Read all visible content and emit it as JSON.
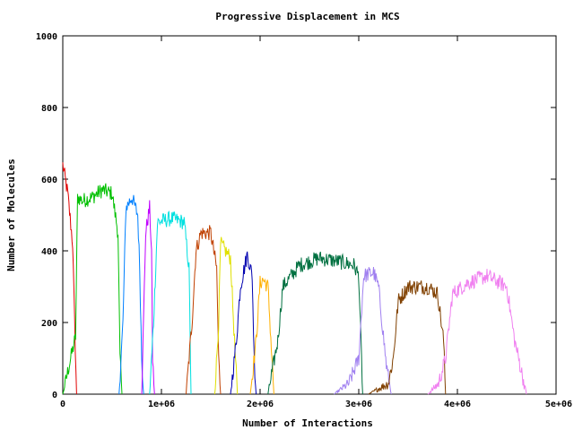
{
  "chart_data": {
    "type": "line",
    "title": "Progressive Displacement in MCS",
    "xlabel": "Number of Interactions",
    "ylabel": "Number of Molecules",
    "xlim": [
      0,
      5000000
    ],
    "ylim": [
      0,
      1000
    ],
    "x_ticks": [
      0,
      1000000,
      2000000,
      3000000,
      4000000,
      5000000
    ],
    "x_tick_labels": [
      "0",
      "1e+06",
      "2e+06",
      "3e+06",
      "4e+06",
      "5e+06"
    ],
    "y_ticks": [
      0,
      200,
      400,
      600,
      800,
      1000
    ],
    "y_tick_labels": [
      "0",
      "200",
      "400",
      "600",
      "800",
      "1000"
    ],
    "grid": false,
    "legend": "none",
    "series": [
      {
        "color": "#e00000",
        "x": [
          0,
          50000,
          100000,
          120000,
          140000
        ],
        "y": [
          640,
          560,
          420,
          200,
          0
        ]
      },
      {
        "color": "#00c000",
        "x": [
          0,
          80000,
          130000,
          150000,
          200000,
          300000,
          400000,
          500000,
          560000,
          580000,
          600000
        ],
        "y": [
          0,
          100,
          160,
          550,
          540,
          550,
          570,
          560,
          450,
          100,
          0
        ]
      },
      {
        "color": "#0080ff",
        "x": [
          570000,
          610000,
          640000,
          700000,
          760000,
          780000,
          800000,
          820000
        ],
        "y": [
          0,
          200,
          520,
          550,
          500,
          350,
          100,
          0
        ]
      },
      {
        "color": "#c000ff",
        "x": [
          800000,
          820000,
          840000,
          880000,
          900000,
          910000,
          930000
        ],
        "y": [
          0,
          220,
          450,
          520,
          400,
          100,
          0
        ]
      },
      {
        "color": "#00e0e0",
        "x": [
          880000,
          920000,
          960000,
          1100000,
          1230000,
          1280000,
          1300000
        ],
        "y": [
          0,
          200,
          480,
          490,
          480,
          350,
          0
        ]
      },
      {
        "color": "#c04000",
        "x": [
          1250000,
          1310000,
          1350000,
          1400000,
          1500000,
          1560000,
          1580000,
          1600000
        ],
        "y": [
          0,
          200,
          400,
          450,
          450,
          350,
          100,
          0
        ]
      },
      {
        "color": "#e0e000",
        "x": [
          1540000,
          1580000,
          1600000,
          1650000,
          1700000,
          1740000,
          1770000
        ],
        "y": [
          0,
          200,
          420,
          400,
          380,
          150,
          0
        ]
      },
      {
        "color": "#0000b0",
        "x": [
          1700000,
          1760000,
          1800000,
          1870000,
          1920000,
          1940000,
          1960000
        ],
        "y": [
          0,
          150,
          300,
          390,
          330,
          100,
          0
        ]
      },
      {
        "color": "#ffb000",
        "x": [
          1900000,
          1960000,
          2000000,
          2030000,
          2080000,
          2120000,
          2140000
        ],
        "y": [
          0,
          150,
          310,
          320,
          300,
          100,
          0
        ]
      },
      {
        "color": "#007040",
        "x": [
          2080000,
          2180000,
          2230000,
          2400000,
          2600000,
          2800000,
          2950000,
          3000000,
          3040000
        ],
        "y": [
          0,
          150,
          300,
          360,
          380,
          370,
          360,
          330,
          0
        ]
      },
      {
        "color": "#a080f0",
        "x": [
          2750000,
          2900000,
          3000000,
          3050000,
          3150000,
          3200000,
          3280000,
          3330000
        ],
        "y": [
          0,
          30,
          100,
          330,
          340,
          300,
          80,
          0
        ]
      },
      {
        "color": "#804000",
        "x": [
          3100000,
          3300000,
          3350000,
          3400000,
          3500000,
          3700000,
          3800000,
          3860000,
          3880000
        ],
        "y": [
          0,
          30,
          100,
          260,
          300,
          300,
          280,
          150,
          0
        ]
      },
      {
        "color": "#f080f0",
        "x": [
          3700000,
          3810000,
          3880000,
          3950000,
          4100000,
          4300000,
          4500000,
          4580000,
          4700000
        ],
        "y": [
          0,
          30,
          100,
          280,
          310,
          330,
          300,
          150,
          0
        ]
      }
    ]
  }
}
